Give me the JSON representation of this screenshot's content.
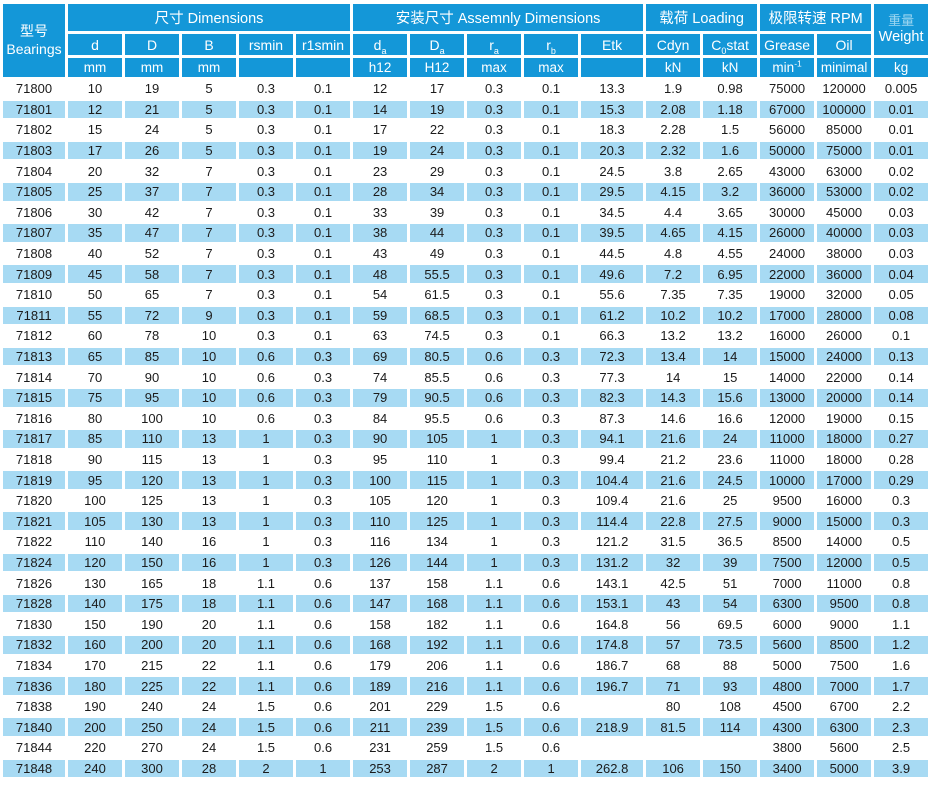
{
  "colors": {
    "header_blue": "#1497D8",
    "alt_row_blue": "#A7DAF3",
    "header_text": "#FFFFFF",
    "cell_text": "#1B1B1B",
    "weight_cn_text": "#9ED7F1"
  },
  "header": {
    "bearings": {
      "line1": "型号",
      "line2": "Bearings"
    },
    "groups": [
      {
        "label": "尺寸 Dimensions",
        "span": 5
      },
      {
        "label": "安装尺寸 Assemnly Dimensions",
        "span": 5
      },
      {
        "label": "载荷 Loading",
        "span": 2
      },
      {
        "label": "极限转速 RPM",
        "span": 2
      }
    ],
    "weight": {
      "line1": "重量",
      "line2": "Weight",
      "unit": "kg"
    },
    "columns": [
      {
        "name": "d",
        "pre": "d",
        "sub": "",
        "post": "",
        "unit": "mm",
        "unit_sup": ""
      },
      {
        "name": "D",
        "pre": "D",
        "sub": "",
        "post": "",
        "unit": "mm",
        "unit_sup": ""
      },
      {
        "name": "B",
        "pre": "B",
        "sub": "",
        "post": "",
        "unit": "mm",
        "unit_sup": ""
      },
      {
        "name": "rsmin",
        "pre": "rsmin",
        "sub": "",
        "post": "",
        "unit": "",
        "unit_sup": ""
      },
      {
        "name": "r1smin",
        "pre": "r1smin",
        "sub": "",
        "post": "",
        "unit": "",
        "unit_sup": ""
      },
      {
        "name": "da",
        "pre": "d",
        "sub": "a",
        "post": "",
        "unit": "h12",
        "unit_sup": ""
      },
      {
        "name": "Da",
        "pre": "D",
        "sub": "a",
        "post": "",
        "unit": "H12",
        "unit_sup": ""
      },
      {
        "name": "ra",
        "pre": "r",
        "sub": "a",
        "post": "",
        "unit": "max",
        "unit_sup": ""
      },
      {
        "name": "rb",
        "pre": "r",
        "sub": "b",
        "post": "",
        "unit": "max",
        "unit_sup": ""
      },
      {
        "name": "Etk",
        "pre": "Etk",
        "sub": "",
        "post": "",
        "unit": "",
        "unit_sup": ""
      },
      {
        "name": "Cdyn",
        "pre": "Cdyn",
        "sub": "",
        "post": "",
        "unit": "kN",
        "unit_sup": ""
      },
      {
        "name": "C0stat",
        "pre": "C",
        "sub": "0",
        "post": "stat",
        "unit": "kN",
        "unit_sup": ""
      },
      {
        "name": "Grease",
        "pre": "Grease",
        "sub": "",
        "post": "",
        "unit": "min",
        "unit_sup": "-1"
      },
      {
        "name": "Oil",
        "pre": "Oil",
        "sub": "",
        "post": "",
        "unit": "minimal",
        "unit_sup": ""
      }
    ]
  },
  "rows": [
    [
      "71800",
      "10",
      "19",
      "5",
      "0.3",
      "0.1",
      "12",
      "17",
      "0.3",
      "0.1",
      "13.3",
      "1.9",
      "0.98",
      "75000",
      "120000",
      "0.005"
    ],
    [
      "71801",
      "12",
      "21",
      "5",
      "0.3",
      "0.1",
      "14",
      "19",
      "0.3",
      "0.1",
      "15.3",
      "2.08",
      "1.18",
      "67000",
      "100000",
      "0.01"
    ],
    [
      "71802",
      "15",
      "24",
      "5",
      "0.3",
      "0.1",
      "17",
      "22",
      "0.3",
      "0.1",
      "18.3",
      "2.28",
      "1.5",
      "56000",
      "85000",
      "0.01"
    ],
    [
      "71803",
      "17",
      "26",
      "5",
      "0.3",
      "0.1",
      "19",
      "24",
      "0.3",
      "0.1",
      "20.3",
      "2.32",
      "1.6",
      "50000",
      "75000",
      "0.01"
    ],
    [
      "71804",
      "20",
      "32",
      "7",
      "0.3",
      "0.1",
      "23",
      "29",
      "0.3",
      "0.1",
      "24.5",
      "3.8",
      "2.65",
      "43000",
      "63000",
      "0.02"
    ],
    [
      "71805",
      "25",
      "37",
      "7",
      "0.3",
      "0.1",
      "28",
      "34",
      "0.3",
      "0.1",
      "29.5",
      "4.15",
      "3.2",
      "36000",
      "53000",
      "0.02"
    ],
    [
      "71806",
      "30",
      "42",
      "7",
      "0.3",
      "0.1",
      "33",
      "39",
      "0.3",
      "0.1",
      "34.5",
      "4.4",
      "3.65",
      "30000",
      "45000",
      "0.03"
    ],
    [
      "71807",
      "35",
      "47",
      "7",
      "0.3",
      "0.1",
      "38",
      "44",
      "0.3",
      "0.1",
      "39.5",
      "4.65",
      "4.15",
      "26000",
      "40000",
      "0.03"
    ],
    [
      "71808",
      "40",
      "52",
      "7",
      "0.3",
      "0.1",
      "43",
      "49",
      "0.3",
      "0.1",
      "44.5",
      "4.8",
      "4.55",
      "24000",
      "38000",
      "0.03"
    ],
    [
      "71809",
      "45",
      "58",
      "7",
      "0.3",
      "0.1",
      "48",
      "55.5",
      "0.3",
      "0.1",
      "49.6",
      "7.2",
      "6.95",
      "22000",
      "36000",
      "0.04"
    ],
    [
      "71810",
      "50",
      "65",
      "7",
      "0.3",
      "0.1",
      "54",
      "61.5",
      "0.3",
      "0.1",
      "55.6",
      "7.35",
      "7.35",
      "19000",
      "32000",
      "0.05"
    ],
    [
      "71811",
      "55",
      "72",
      "9",
      "0.3",
      "0.1",
      "59",
      "68.5",
      "0.3",
      "0.1",
      "61.2",
      "10.2",
      "10.2",
      "17000",
      "28000",
      "0.08"
    ],
    [
      "71812",
      "60",
      "78",
      "10",
      "0.3",
      "0.1",
      "63",
      "74.5",
      "0.3",
      "0.1",
      "66.3",
      "13.2",
      "13.2",
      "16000",
      "26000",
      "0.1"
    ],
    [
      "71813",
      "65",
      "85",
      "10",
      "0.6",
      "0.3",
      "69",
      "80.5",
      "0.6",
      "0.3",
      "72.3",
      "13.4",
      "14",
      "15000",
      "24000",
      "0.13"
    ],
    [
      "71814",
      "70",
      "90",
      "10",
      "0.6",
      "0.3",
      "74",
      "85.5",
      "0.6",
      "0.3",
      "77.3",
      "14",
      "15",
      "14000",
      "22000",
      "0.14"
    ],
    [
      "71815",
      "75",
      "95",
      "10",
      "0.6",
      "0.3",
      "79",
      "90.5",
      "0.6",
      "0.3",
      "82.3",
      "14.3",
      "15.6",
      "13000",
      "20000",
      "0.14"
    ],
    [
      "71816",
      "80",
      "100",
      "10",
      "0.6",
      "0.3",
      "84",
      "95.5",
      "0.6",
      "0.3",
      "87.3",
      "14.6",
      "16.6",
      "12000",
      "19000",
      "0.15"
    ],
    [
      "71817",
      "85",
      "110",
      "13",
      "1",
      "0.3",
      "90",
      "105",
      "1",
      "0.3",
      "94.1",
      "21.6",
      "24",
      "11000",
      "18000",
      "0.27"
    ],
    [
      "71818",
      "90",
      "115",
      "13",
      "1",
      "0.3",
      "95",
      "110",
      "1",
      "0.3",
      "99.4",
      "21.2",
      "23.6",
      "11000",
      "18000",
      "0.28"
    ],
    [
      "71819",
      "95",
      "120",
      "13",
      "1",
      "0.3",
      "100",
      "115",
      "1",
      "0.3",
      "104.4",
      "21.6",
      "24.5",
      "10000",
      "17000",
      "0.29"
    ],
    [
      "71820",
      "100",
      "125",
      "13",
      "1",
      "0.3",
      "105",
      "120",
      "1",
      "0.3",
      "109.4",
      "21.6",
      "25",
      "9500",
      "16000",
      "0.3"
    ],
    [
      "71821",
      "105",
      "130",
      "13",
      "1",
      "0.3",
      "110",
      "125",
      "1",
      "0.3",
      "114.4",
      "22.8",
      "27.5",
      "9000",
      "15000",
      "0.3"
    ],
    [
      "71822",
      "110",
      "140",
      "16",
      "1",
      "0.3",
      "116",
      "134",
      "1",
      "0.3",
      "121.2",
      "31.5",
      "36.5",
      "8500",
      "14000",
      "0.5"
    ],
    [
      "71824",
      "120",
      "150",
      "16",
      "1",
      "0.3",
      "126",
      "144",
      "1",
      "0.3",
      "131.2",
      "32",
      "39",
      "7500",
      "12000",
      "0.5"
    ],
    [
      "71826",
      "130",
      "165",
      "18",
      "1.1",
      "0.6",
      "137",
      "158",
      "1.1",
      "0.6",
      "143.1",
      "42.5",
      "51",
      "7000",
      "11000",
      "0.8"
    ],
    [
      "71828",
      "140",
      "175",
      "18",
      "1.1",
      "0.6",
      "147",
      "168",
      "1.1",
      "0.6",
      "153.1",
      "43",
      "54",
      "6300",
      "9500",
      "0.8"
    ],
    [
      "71830",
      "150",
      "190",
      "20",
      "1.1",
      "0.6",
      "158",
      "182",
      "1.1",
      "0.6",
      "164.8",
      "56",
      "69.5",
      "6000",
      "9000",
      "1.1"
    ],
    [
      "71832",
      "160",
      "200",
      "20",
      "1.1",
      "0.6",
      "168",
      "192",
      "1.1",
      "0.6",
      "174.8",
      "57",
      "73.5",
      "5600",
      "8500",
      "1.2"
    ],
    [
      "71834",
      "170",
      "215",
      "22",
      "1.1",
      "0.6",
      "179",
      "206",
      "1.1",
      "0.6",
      "186.7",
      "68",
      "88",
      "5000",
      "7500",
      "1.6"
    ],
    [
      "71836",
      "180",
      "225",
      "22",
      "1.1",
      "0.6",
      "189",
      "216",
      "1.1",
      "0.6",
      "196.7",
      "71",
      "93",
      "4800",
      "7000",
      "1.7"
    ],
    [
      "71838",
      "190",
      "240",
      "24",
      "1.5",
      "0.6",
      "201",
      "229",
      "1.5",
      "0.6",
      "",
      "80",
      "108",
      "4500",
      "6700",
      "2.2"
    ],
    [
      "71840",
      "200",
      "250",
      "24",
      "1.5",
      "0.6",
      "211",
      "239",
      "1.5",
      "0.6",
      "218.9",
      "81.5",
      "114",
      "4300",
      "6300",
      "2.3"
    ],
    [
      "71844",
      "220",
      "270",
      "24",
      "1.5",
      "0.6",
      "231",
      "259",
      "1.5",
      "0.6",
      "",
      "",
      "",
      "3800",
      "5600",
      "2.5"
    ],
    [
      "71848",
      "240",
      "300",
      "28",
      "2",
      "1",
      "253",
      "287",
      "2",
      "1",
      "262.8",
      "106",
      "150",
      "3400",
      "5000",
      "3.9"
    ]
  ]
}
